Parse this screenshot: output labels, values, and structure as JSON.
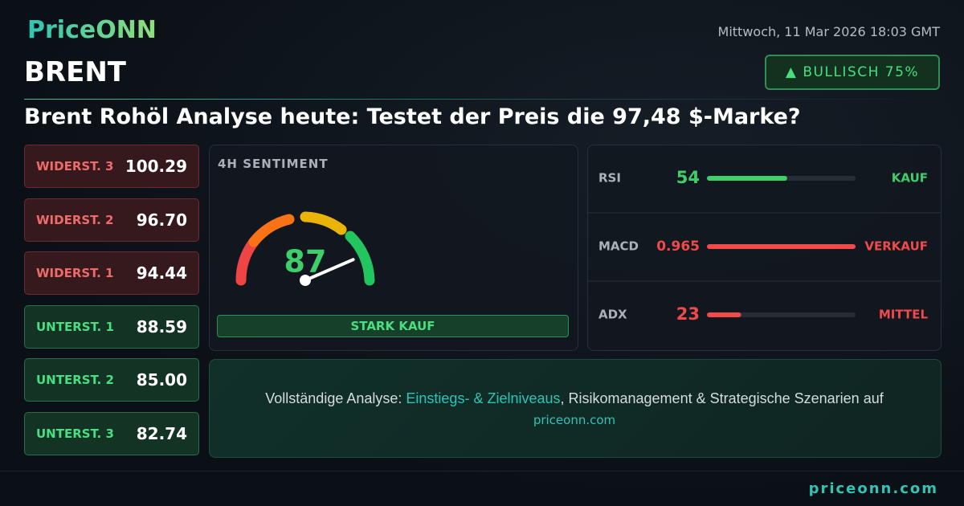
{
  "header": {
    "logo": "PriceONN",
    "date": "Mittwoch, 11 Mar 2026 18:03 GMT",
    "symbol": "BRENT",
    "badge": "▲ BULLISCH 75%",
    "title": "Brent Rohöl Analyse heute: Testet der Preis die 97,48 $-Marke?"
  },
  "levels": [
    {
      "label": "WIDERST. 3",
      "value": "100.29",
      "kind": "resistance"
    },
    {
      "label": "WIDERST. 2",
      "value": "96.70",
      "kind": "resistance"
    },
    {
      "label": "WIDERST. 1",
      "value": "94.44",
      "kind": "resistance"
    },
    {
      "label": "UNTERST. 1",
      "value": "88.59",
      "kind": "support"
    },
    {
      "label": "UNTERST. 2",
      "value": "85.00",
      "kind": "support"
    },
    {
      "label": "UNTERST. 3",
      "value": "82.74",
      "kind": "support"
    }
  ],
  "sentiment": {
    "label": "4H SENTIMENT",
    "value": 87,
    "verdict": "STARK KAUF"
  },
  "indicators": [
    {
      "name": "RSI",
      "value": 54,
      "signal": "KAUF",
      "color": "#3fcf6a"
    },
    {
      "name": "MACD",
      "value": 0.965,
      "signal": "VERKAUF",
      "color": "#f04a4a"
    },
    {
      "name": "ADX",
      "value": 23,
      "signal": "MITTEL",
      "color": "#f04a4a"
    }
  ],
  "cta": {
    "lead": "Vollständige Analyse:",
    "highlight": "Einstiegs- & Zielniveaus",
    "rest": ", Risikomanagement & Strategische Szenarien auf",
    "site": "priceonn.com"
  },
  "footer": {
    "url": "priceonn.com"
  }
}
